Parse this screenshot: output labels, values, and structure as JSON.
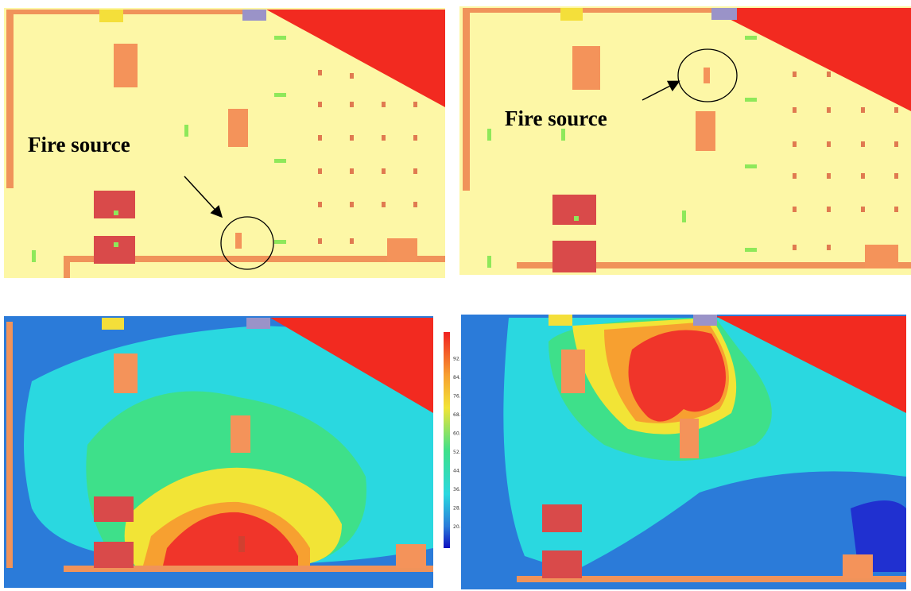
{
  "panels": [
    {
      "label": "Fire source"
    },
    {
      "label": "Fire source"
    }
  ],
  "colorbar": {
    "labels": [
      "92.0",
      "84.0",
      "76.0",
      "68.0",
      "60.0",
      "52.0",
      "44.0",
      "36.0",
      "28.0",
      "20.0"
    ]
  }
}
